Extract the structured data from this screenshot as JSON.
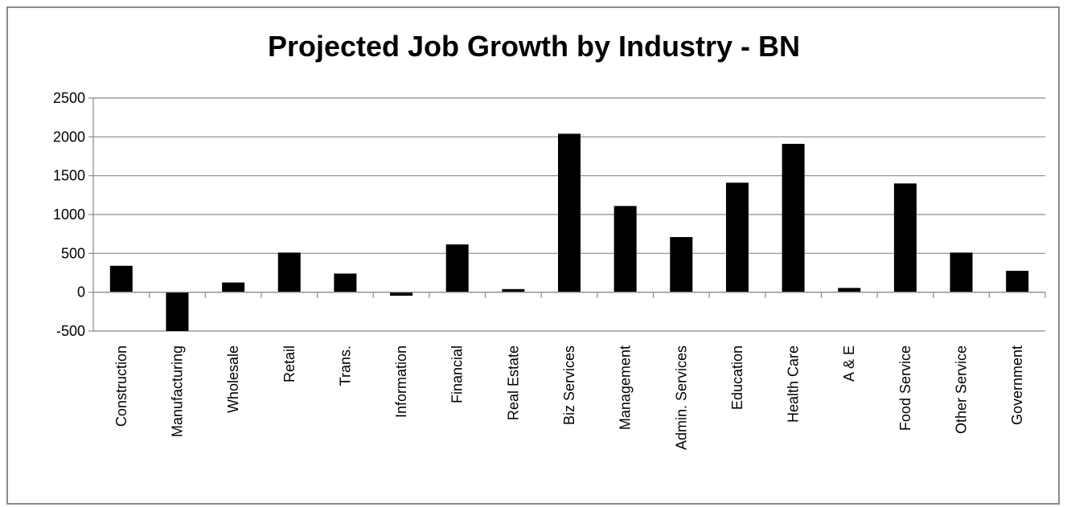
{
  "chart_data": {
    "type": "bar",
    "title": "Projected Job Growth by Industry - BN",
    "xlabel": "",
    "ylabel": "",
    "ylim": [
      -500,
      2500
    ],
    "yticks": [
      "2500",
      "2000",
      "1500",
      "1000",
      "500",
      "0",
      "-500"
    ],
    "grid": true,
    "legend": "none",
    "bar_color": "#000000",
    "grid_color": "#8a8a8a",
    "categories": [
      "Construction",
      "Manufacturing",
      "Wholesale",
      "Retail",
      "Trans.",
      "Information",
      "Financial",
      "Real Estate",
      "Biz Services",
      "Management",
      "Admin. Services",
      "Education",
      "Health Care",
      "A & E",
      "Food Service",
      "Other Service",
      "Government"
    ],
    "values": [
      340,
      -500,
      125,
      510,
      240,
      -45,
      615,
      40,
      2040,
      1110,
      710,
      1410,
      1910,
      55,
      1400,
      510,
      275
    ]
  }
}
